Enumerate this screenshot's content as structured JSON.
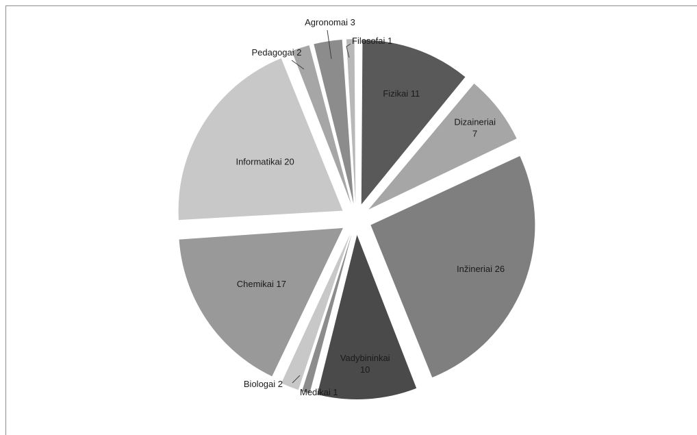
{
  "chart_data": {
    "type": "pie",
    "title": "",
    "slices": [
      {
        "label": "Fizikai",
        "value": 11,
        "color": "#595959"
      },
      {
        "label": "Dizaineriai",
        "value": 7,
        "color": "#a6a6a6"
      },
      {
        "label": "Inžineriai",
        "value": 26,
        "color": "#7f7f7f"
      },
      {
        "label": "Vadybininkai",
        "value": 10,
        "color": "#4a4a4a"
      },
      {
        "label": "Medikai",
        "value": 1,
        "color": "#8c8c8c"
      },
      {
        "label": "Biologai",
        "value": 2,
        "color": "#c8c8c8"
      },
      {
        "label": "Chemikai",
        "value": 17,
        "color": "#999999"
      },
      {
        "label": "Informatikai",
        "value": 20,
        "color": "#c8c8c8"
      },
      {
        "label": "Pedagogai",
        "value": 2,
        "color": "#a6a6a6"
      },
      {
        "label": "Agronomai",
        "value": 3,
        "color": "#8c8c8c"
      },
      {
        "label": "Filosofai",
        "value": 1,
        "color": "#b8b8b8"
      }
    ],
    "exploded": true,
    "legend": "none",
    "data_labels": "category and value"
  }
}
